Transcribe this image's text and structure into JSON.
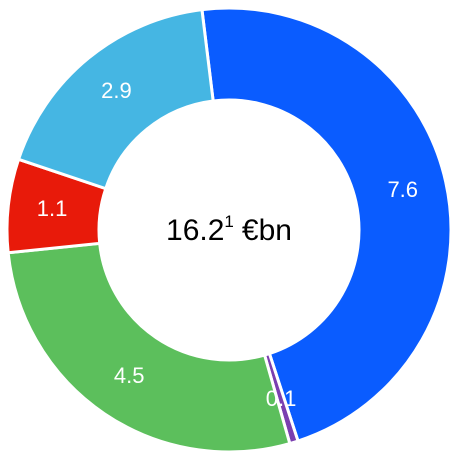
{
  "chart_data": {
    "type": "donut",
    "categories": [
      null,
      null,
      null,
      null,
      null
    ],
    "values": [
      7.6,
      0.1,
      4.5,
      1.1,
      2.9
    ],
    "colors": [
      "#0a5cff",
      "#7a3fb0",
      "#5cbf5c",
      "#e81a0a",
      "#45b6e3"
    ],
    "center_text": "16.2",
    "center_footnote": "1",
    "center_unit": "€bn"
  }
}
